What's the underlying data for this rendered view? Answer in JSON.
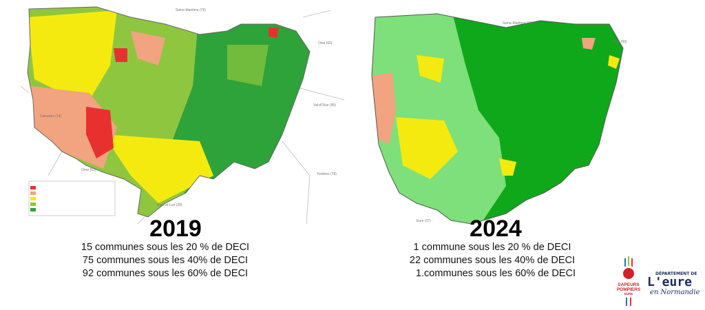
{
  "map_2019": {
    "year": "2019",
    "stats": [
      "15 communes sous les 20 % de DECI",
      "75 communes sous les 40% de DECI",
      "92 communes sous les 60% de DECI"
    ],
    "neighbor_labels": [
      "Seine-Maritime (76)",
      "Oise (60)",
      "Calvados (14)",
      "Val-d'Oise (95)",
      "Orne (61)",
      "Yvelines (78)",
      "Eure-et-Loir (28)"
    ]
  },
  "map_2024": {
    "year": "2024",
    "stats": [
      "1 commune sous les 20 % de DECI",
      "22 communes sous les 40% de DECI",
      "1.communes sous les 60% de DECI"
    ],
    "neighbor_labels": [
      "Seine-Maritime (76)",
      "Oise (60)",
      "Eure (27)"
    ]
  },
  "legend_colors": {
    "below_20": "#e8312f",
    "20_40": "#f2a37f",
    "40_60": "#f5ea10",
    "60_80": "#8fc63f",
    "above_80": "#2ea33a",
    "light_green_2024": "#7de07a",
    "dark_green_2024": "#0fa81a"
  },
  "logos": {
    "sapeurs_pompiers": "SAPEURS POMPIERS EURE",
    "departement": "DÉPARTEMENT DE L'EURE en Normandie"
  }
}
